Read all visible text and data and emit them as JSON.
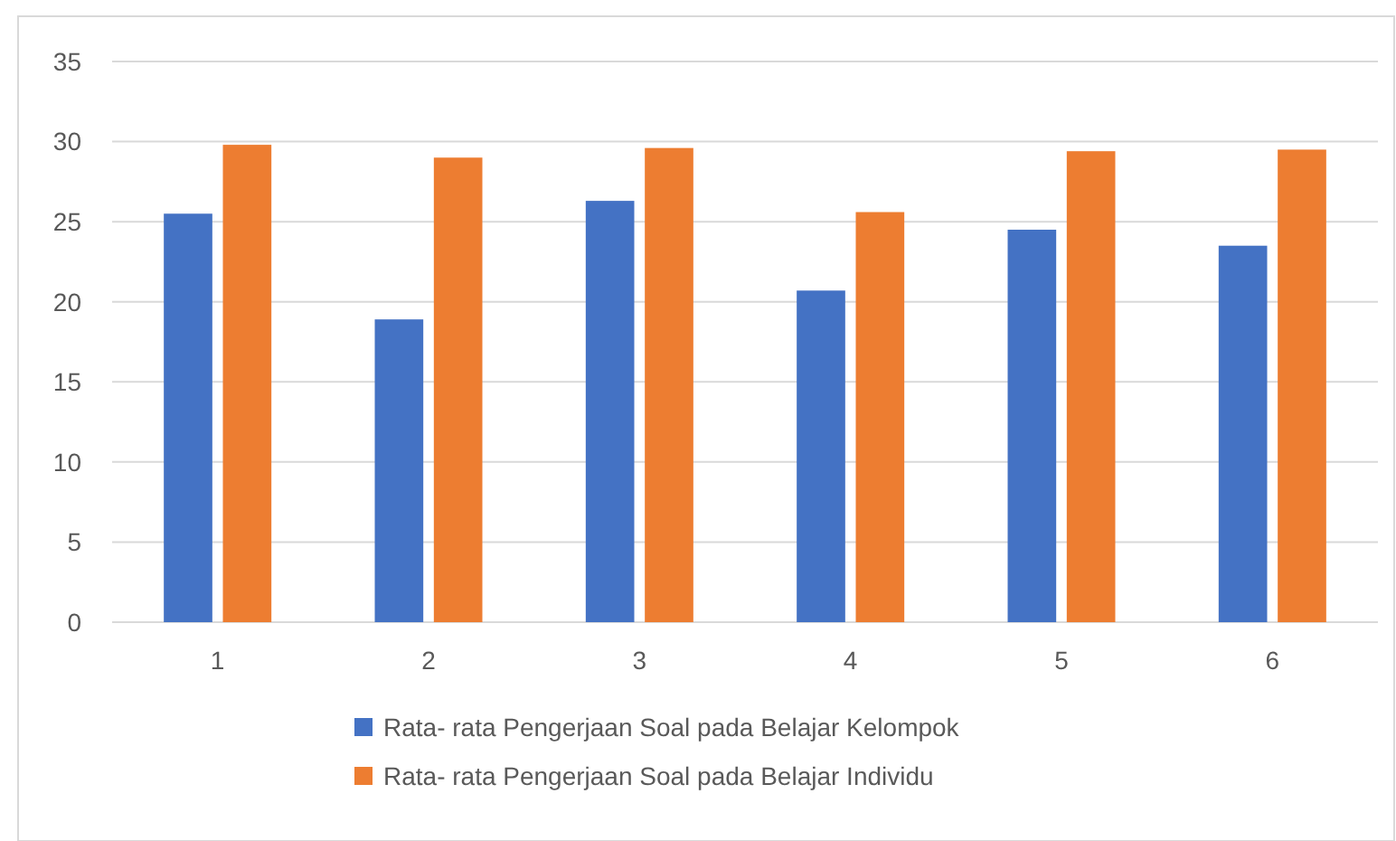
{
  "chart_data": {
    "type": "bar",
    "categories": [
      "1",
      "2",
      "3",
      "4",
      "5",
      "6"
    ],
    "series": [
      {
        "name": "Rata- rata Pengerjaan Soal pada Belajar Kelompok",
        "color": "#4472c4",
        "values": [
          25.5,
          18.9,
          26.3,
          20.7,
          24.5,
          23.5
        ]
      },
      {
        "name": "Rata- rata Pengerjaan Soal pada Belajar Individu",
        "color": "#ed7d31",
        "values": [
          29.8,
          29.0,
          29.6,
          25.6,
          29.4,
          29.5
        ]
      }
    ],
    "ylim": [
      0,
      35
    ],
    "yticks": [
      0,
      5,
      10,
      15,
      20,
      25,
      30,
      35
    ],
    "grid": "y",
    "legend": "bottom"
  }
}
